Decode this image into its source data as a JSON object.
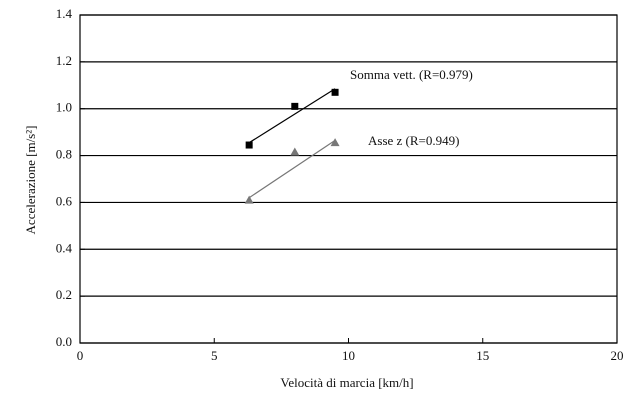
{
  "chart_data": {
    "type": "scatter",
    "x_label": "Velocità di marcia [km/h]",
    "y_label": "Accelerazione [m/s²]",
    "x": [
      6.3,
      8.0,
      9.5
    ],
    "series": [
      {
        "name": "Somma vett. (R=0.979)",
        "color": "#000000",
        "marker": "square",
        "values": [
          0.845,
          1.01,
          1.07
        ],
        "fit": {
          "x": [
            6.3,
            9.5
          ],
          "y": [
            0.855,
            1.085
          ]
        }
      },
      {
        "name": "Asse z (R=0.949)",
        "color": "#777777",
        "marker": "triangle",
        "values": [
          0.61,
          0.815,
          0.855
        ],
        "fit": {
          "x": [
            6.3,
            9.5
          ],
          "y": [
            0.62,
            0.865
          ]
        }
      }
    ],
    "xlim": [
      0,
      20
    ],
    "xticks": [
      0,
      5,
      10,
      15,
      20
    ],
    "ylim": [
      0,
      1.4
    ],
    "yticks": [
      {
        "value": 0,
        "label": "0.0"
      },
      0.2,
      0.4,
      0.6,
      0.8,
      {
        "value": 1,
        "label": "1.0"
      },
      1.2,
      1.4
    ],
    "grid": true
  }
}
